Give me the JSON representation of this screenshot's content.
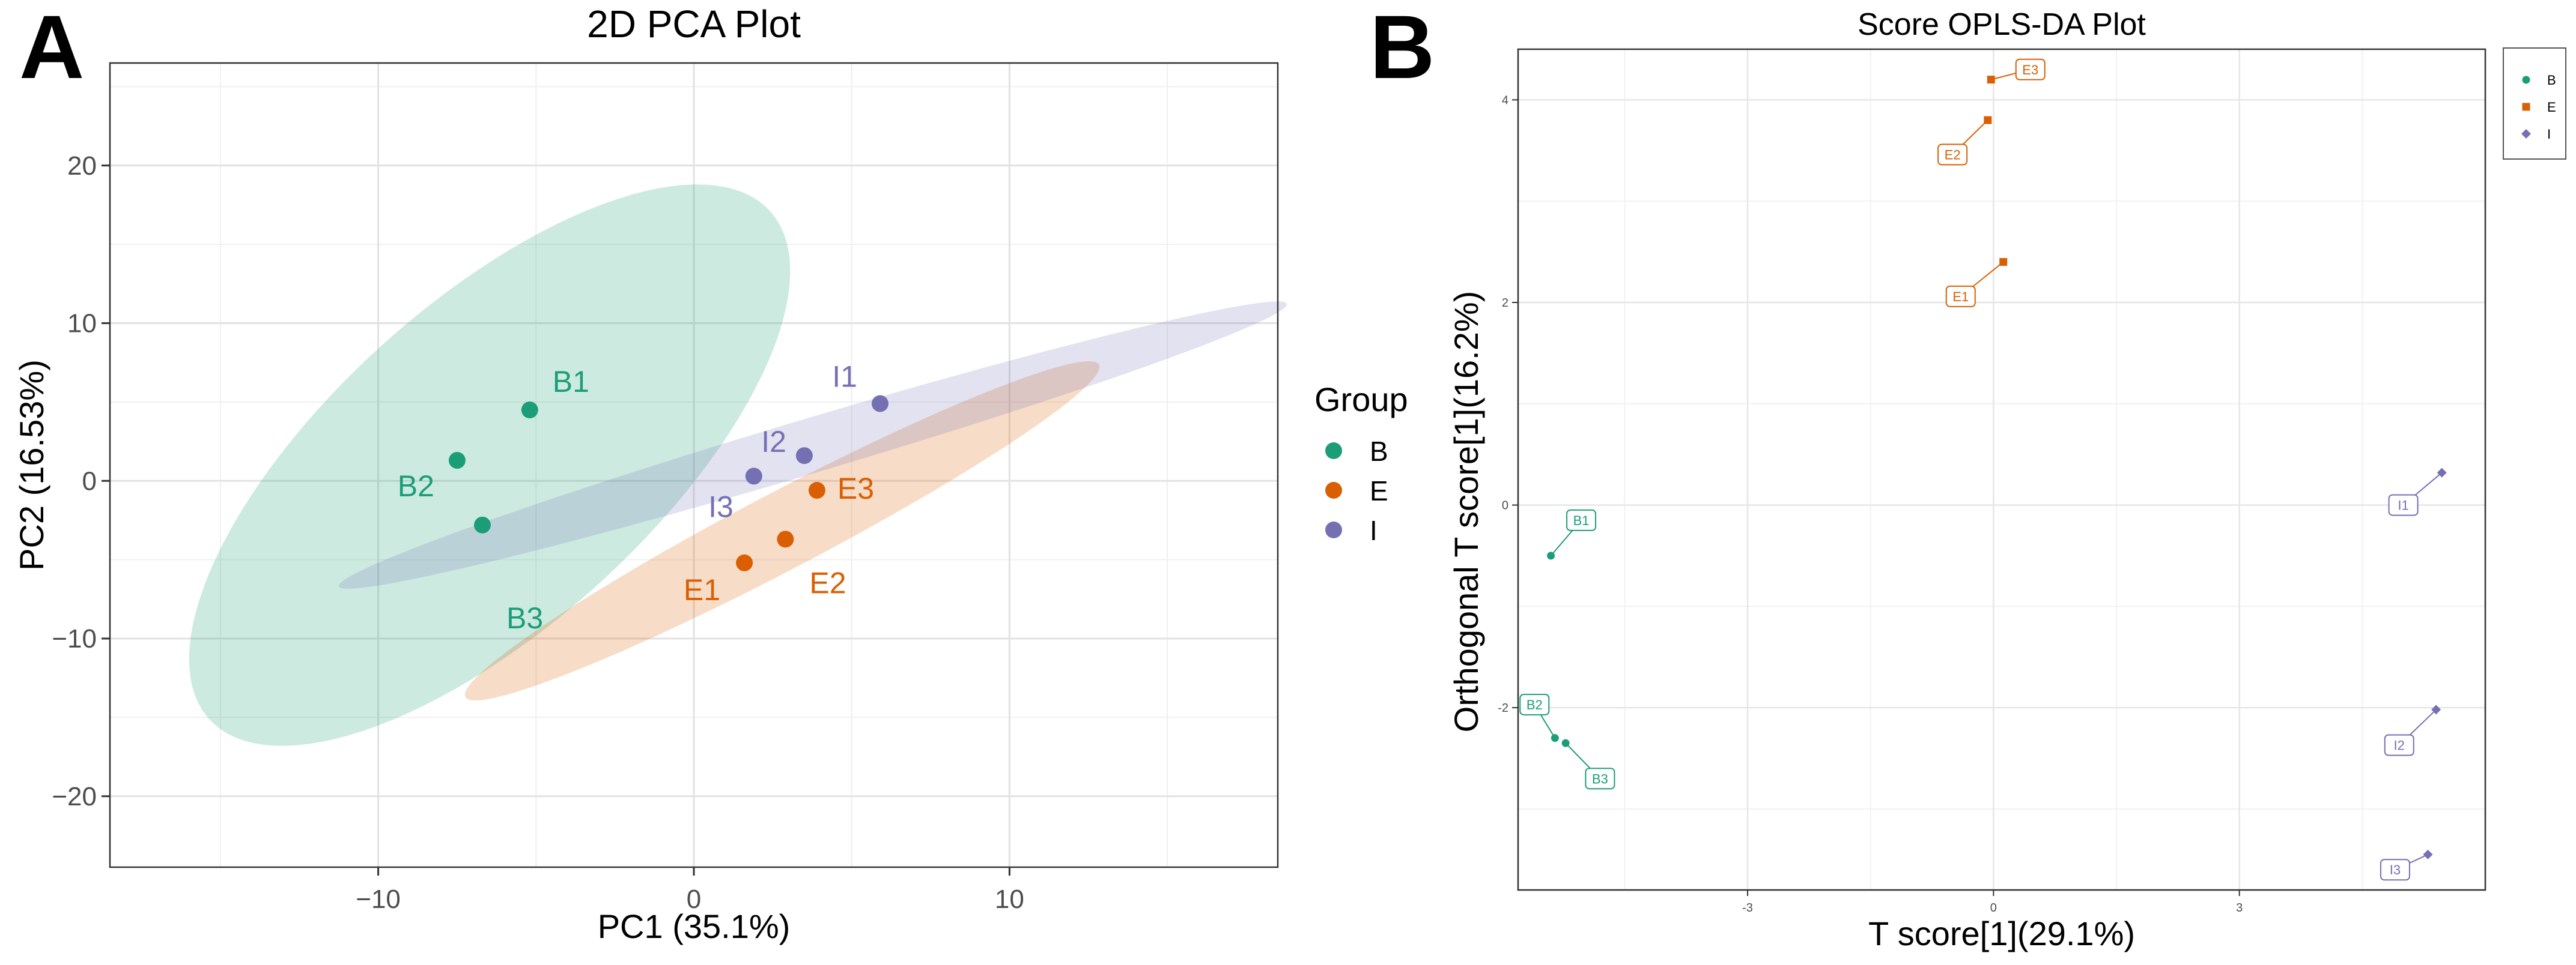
{
  "colors": {
    "B": "#1b9e77",
    "E": "#d95f02",
    "I": "#7570b3"
  },
  "panels": {
    "a_letter": "A",
    "b_letter": "B"
  },
  "chart_data": [
    {
      "type": "scatter",
      "title": "2D PCA Plot",
      "xlabel": "PC1 (35.1%)",
      "ylabel": "PC2 (16.53%)",
      "xlim": [
        -18.5,
        18.5
      ],
      "ylim": [
        -24.5,
        26.5
      ],
      "xticks": [
        -10,
        0,
        10
      ],
      "yticks": [
        -20,
        -10,
        0,
        10,
        20
      ],
      "xtick_labels": [
        "−10",
        "0",
        "10"
      ],
      "ytick_labels": [
        "−20",
        "−10",
        "0",
        "10",
        "20"
      ],
      "grid": true,
      "legend": {
        "title": "Group",
        "position": "right",
        "entries": [
          "B",
          "E",
          "I"
        ]
      },
      "series": [
        {
          "name": "B",
          "points": [
            {
              "label": "B1",
              "x": -5.2,
              "y": 4.5
            },
            {
              "label": "B2",
              "x": -7.5,
              "y": 1.3
            },
            {
              "label": "B3",
              "x": -6.7,
              "y": -2.8
            }
          ]
        },
        {
          "name": "E",
          "points": [
            {
              "label": "E1",
              "x": 1.6,
              "y": -5.2
            },
            {
              "label": "E2",
              "x": 2.9,
              "y": -3.7
            },
            {
              "label": "E3",
              "x": 3.9,
              "y": -0.6
            }
          ]
        },
        {
          "name": "I",
          "points": [
            {
              "label": "I1",
              "x": 5.9,
              "y": 4.9
            },
            {
              "label": "I2",
              "x": 3.5,
              "y": 1.6
            },
            {
              "label": "I3",
              "x": 1.9,
              "y": 0.3
            }
          ]
        }
      ],
      "ellipses": [
        {
          "group": "B",
          "center": [
            -6.47,
            0.997
          ],
          "half_axis_major": 19.15,
          "half_axis_minor": 6.4,
          "angle_deg": 67
        },
        {
          "group": "E",
          "center": [
            2.8,
            -3.17
          ],
          "half_axis_major": 14.6,
          "half_axis_minor": 1.9,
          "angle_deg": 47
        },
        {
          "group": "I",
          "center": [
            3.77,
            2.27
          ],
          "half_axis_major": 17.5,
          "half_axis_minor": 1.55,
          "angle_deg": 31
        }
      ]
    },
    {
      "type": "scatter",
      "title": "Score OPLS-DA Plot",
      "xlabel": "T score[1](29.1%)",
      "ylabel": "Orthogonal T score[1](16.2%)",
      "xlim": [
        -5.8,
        6.0
      ],
      "ylim": [
        -3.8,
        4.5
      ],
      "xticks": [
        -3,
        0,
        3
      ],
      "yticks": [
        -2,
        0,
        2,
        4
      ],
      "xtick_labels": [
        "-3",
        "0",
        "3"
      ],
      "ytick_labels": [
        "-2",
        "0",
        "2",
        "4"
      ],
      "grid": true,
      "legend": {
        "title": "",
        "position": "top-right",
        "entries": [
          "B",
          "E",
          "I"
        ]
      },
      "series": [
        {
          "name": "B",
          "marker": "circle",
          "points": [
            {
              "label": "B1",
              "x": -5.4,
              "y": -0.5,
              "label_x": -5.03,
              "label_y": -0.15
            },
            {
              "label": "B2",
              "x": -5.35,
              "y": -2.3,
              "label_x": -5.6,
              "label_y": -1.97
            },
            {
              "label": "B3",
              "x": -5.22,
              "y": -2.35,
              "label_x": -4.8,
              "label_y": -2.7
            }
          ]
        },
        {
          "name": "E",
          "marker": "square",
          "points": [
            {
              "label": "E1",
              "x": 0.12,
              "y": 2.4,
              "label_x": -0.4,
              "label_y": 2.06
            },
            {
              "label": "E2",
              "x": -0.07,
              "y": 3.8,
              "label_x": -0.5,
              "label_y": 3.46
            },
            {
              "label": "E3",
              "x": -0.03,
              "y": 4.2,
              "label_x": 0.45,
              "label_y": 4.3
            }
          ]
        },
        {
          "name": "I",
          "marker": "diamond",
          "points": [
            {
              "label": "I1",
              "x": 5.47,
              "y": 0.32,
              "label_x": 5.0,
              "label_y": 0
            },
            {
              "label": "I2",
              "x": 5.4,
              "y": -2.02,
              "label_x": 4.95,
              "label_y": -2.37
            },
            {
              "label": "I3",
              "x": 5.3,
              "y": -3.45,
              "label_x": 4.9,
              "label_y": -3.6
            }
          ]
        }
      ]
    }
  ]
}
